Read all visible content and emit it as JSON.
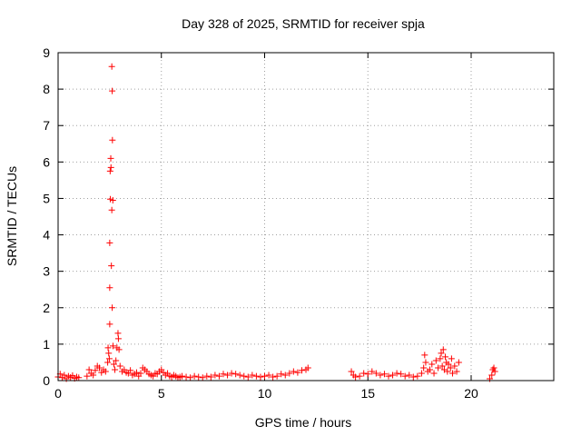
{
  "chart_data": {
    "type": "scatter",
    "title": "Day 328 of 2025, SRMTID for receiver spja",
    "xlabel": "GPS time / hours",
    "ylabel": "SRMTID / TECUs",
    "xlim": [
      0,
      24
    ],
    "ylim": [
      0,
      9
    ],
    "xticks": [
      0,
      5,
      10,
      15,
      20
    ],
    "yticks": [
      0,
      1,
      2,
      3,
      4,
      5,
      6,
      7,
      8,
      9
    ],
    "grid": true,
    "marker": "plus",
    "color": "#ff0000",
    "series": [
      {
        "name": "spja",
        "points": [
          [
            0.0,
            0.1
          ],
          [
            0.1,
            0.18
          ],
          [
            0.2,
            0.08
          ],
          [
            0.3,
            0.15
          ],
          [
            0.4,
            0.05
          ],
          [
            0.5,
            0.12
          ],
          [
            0.6,
            0.09
          ],
          [
            0.7,
            0.14
          ],
          [
            0.8,
            0.06
          ],
          [
            0.9,
            0.1
          ],
          [
            1.0,
            0.08
          ],
          [
            1.4,
            0.12
          ],
          [
            1.5,
            0.3
          ],
          [
            1.6,
            0.2
          ],
          [
            1.7,
            0.15
          ],
          [
            1.8,
            0.28
          ],
          [
            1.9,
            0.4
          ],
          [
            2.0,
            0.35
          ],
          [
            2.1,
            0.22
          ],
          [
            2.2,
            0.3
          ],
          [
            2.3,
            0.25
          ],
          [
            2.4,
            0.5
          ],
          [
            2.42,
            0.9
          ],
          [
            2.45,
            0.75
          ],
          [
            2.48,
            0.6
          ],
          [
            2.5,
            1.55
          ],
          [
            2.5,
            2.55
          ],
          [
            2.5,
            3.78
          ],
          [
            2.52,
            5.75
          ],
          [
            2.53,
            4.98
          ],
          [
            2.55,
            6.1
          ],
          [
            2.56,
            5.85
          ],
          [
            2.58,
            3.15
          ],
          [
            2.6,
            8.62
          ],
          [
            2.6,
            4.68
          ],
          [
            2.62,
            7.95
          ],
          [
            2.62,
            2.0
          ],
          [
            2.63,
            6.6
          ],
          [
            2.65,
            4.95
          ],
          [
            2.66,
            0.95
          ],
          [
            2.7,
            0.45
          ],
          [
            2.75,
            0.3
          ],
          [
            2.8,
            0.55
          ],
          [
            2.85,
            0.9
          ],
          [
            2.9,
            1.3
          ],
          [
            2.92,
            1.15
          ],
          [
            2.95,
            0.85
          ],
          [
            3.0,
            0.4
          ],
          [
            3.1,
            0.25
          ],
          [
            3.2,
            0.3
          ],
          [
            3.3,
            0.22
          ],
          [
            3.4,
            0.2
          ],
          [
            3.5,
            0.28
          ],
          [
            3.6,
            0.15
          ],
          [
            3.7,
            0.18
          ],
          [
            3.8,
            0.22
          ],
          [
            3.9,
            0.12
          ],
          [
            4.0,
            0.2
          ],
          [
            4.1,
            0.35
          ],
          [
            4.2,
            0.3
          ],
          [
            4.3,
            0.25
          ],
          [
            4.4,
            0.18
          ],
          [
            4.5,
            0.15
          ],
          [
            4.6,
            0.12
          ],
          [
            4.7,
            0.2
          ],
          [
            4.8,
            0.18
          ],
          [
            4.9,
            0.25
          ],
          [
            5.0,
            0.3
          ],
          [
            5.1,
            0.22
          ],
          [
            5.2,
            0.15
          ],
          [
            5.3,
            0.2
          ],
          [
            5.4,
            0.12
          ],
          [
            5.5,
            0.1
          ],
          [
            5.6,
            0.15
          ],
          [
            5.7,
            0.12
          ],
          [
            5.8,
            0.08
          ],
          [
            5.9,
            0.1
          ],
          [
            6.0,
            0.12
          ],
          [
            6.2,
            0.1
          ],
          [
            6.4,
            0.08
          ],
          [
            6.6,
            0.12
          ],
          [
            6.8,
            0.1
          ],
          [
            7.0,
            0.08
          ],
          [
            7.2,
            0.12
          ],
          [
            7.4,
            0.1
          ],
          [
            7.6,
            0.15
          ],
          [
            7.8,
            0.12
          ],
          [
            8.0,
            0.18
          ],
          [
            8.2,
            0.15
          ],
          [
            8.4,
            0.2
          ],
          [
            8.6,
            0.18
          ],
          [
            8.8,
            0.15
          ],
          [
            9.0,
            0.12
          ],
          [
            9.2,
            0.1
          ],
          [
            9.4,
            0.15
          ],
          [
            9.6,
            0.12
          ],
          [
            9.8,
            0.1
          ],
          [
            10.0,
            0.12
          ],
          [
            10.2,
            0.15
          ],
          [
            10.4,
            0.1
          ],
          [
            10.6,
            0.12
          ],
          [
            10.8,
            0.18
          ],
          [
            11.0,
            0.15
          ],
          [
            11.2,
            0.2
          ],
          [
            11.4,
            0.25
          ],
          [
            11.6,
            0.22
          ],
          [
            11.8,
            0.28
          ],
          [
            12.0,
            0.3
          ],
          [
            12.1,
            0.35
          ],
          [
            14.2,
            0.25
          ],
          [
            14.3,
            0.15
          ],
          [
            14.4,
            0.1
          ],
          [
            14.6,
            0.12
          ],
          [
            14.8,
            0.2
          ],
          [
            15.0,
            0.18
          ],
          [
            15.2,
            0.25
          ],
          [
            15.4,
            0.2
          ],
          [
            15.6,
            0.15
          ],
          [
            15.8,
            0.18
          ],
          [
            16.0,
            0.12
          ],
          [
            16.2,
            0.15
          ],
          [
            16.4,
            0.2
          ],
          [
            16.6,
            0.18
          ],
          [
            16.8,
            0.12
          ],
          [
            17.0,
            0.15
          ],
          [
            17.2,
            0.1
          ],
          [
            17.4,
            0.12
          ],
          [
            17.6,
            0.2
          ],
          [
            17.7,
            0.35
          ],
          [
            17.75,
            0.7
          ],
          [
            17.8,
            0.5
          ],
          [
            17.9,
            0.25
          ],
          [
            18.0,
            0.3
          ],
          [
            18.1,
            0.45
          ],
          [
            18.2,
            0.2
          ],
          [
            18.3,
            0.55
          ],
          [
            18.4,
            0.35
          ],
          [
            18.5,
            0.6
          ],
          [
            18.55,
            0.75
          ],
          [
            18.6,
            0.4
          ],
          [
            18.65,
            0.85
          ],
          [
            18.7,
            0.3
          ],
          [
            18.75,
            0.65
          ],
          [
            18.8,
            0.5
          ],
          [
            18.85,
            0.25
          ],
          [
            18.9,
            0.45
          ],
          [
            19.0,
            0.35
          ],
          [
            19.05,
            0.6
          ],
          [
            19.1,
            0.2
          ],
          [
            19.2,
            0.4
          ],
          [
            19.3,
            0.25
          ],
          [
            19.4,
            0.5
          ],
          [
            20.9,
            0.05
          ],
          [
            21.0,
            0.15
          ],
          [
            21.05,
            0.3
          ],
          [
            21.1,
            0.35
          ],
          [
            21.15,
            0.25
          ]
        ]
      }
    ]
  }
}
